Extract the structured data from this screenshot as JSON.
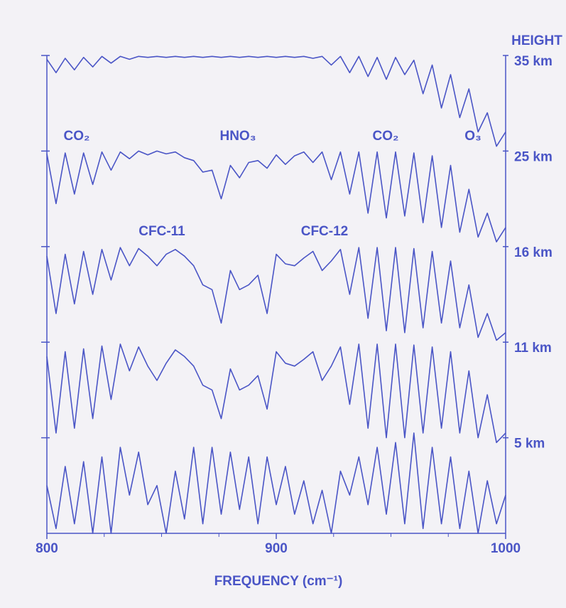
{
  "chart_data": {
    "type": "line",
    "xlabel": "FREQUENCY (cm⁻¹)",
    "ylabel": "HEIGHT",
    "color": "#4a55c6",
    "xlim": [
      800,
      1000
    ],
    "xticks": [
      800,
      900,
      1000
    ],
    "xminorticks": [
      825,
      850,
      875,
      925,
      950,
      975
    ],
    "ylim": [
      -1,
      4
    ],
    "yticks": [
      {
        "value": 4,
        "label": "35 km"
      },
      {
        "value": 3,
        "label": "25 km"
      },
      {
        "value": 2,
        "label": "16 km"
      },
      {
        "value": 1,
        "label": "11 km"
      },
      {
        "value": 0,
        "label": "5 km"
      }
    ],
    "annotations": [
      "CO₂",
      "HNO₃",
      "CO₂",
      "O₃",
      "CFC-11",
      "CFC-12"
    ],
    "x": [
      800,
      804,
      808,
      812,
      816,
      820,
      824,
      828,
      832,
      836,
      840,
      844,
      848,
      852,
      856,
      860,
      864,
      868,
      872,
      876,
      880,
      884,
      888,
      892,
      896,
      900,
      904,
      908,
      912,
      916,
      920,
      924,
      928,
      932,
      936,
      940,
      944,
      948,
      952,
      956,
      960,
      964,
      968,
      972,
      976,
      980,
      984,
      988,
      992,
      996,
      1000
    ],
    "series": [
      {
        "name": "35 km",
        "values": [
          3.96,
          3.82,
          3.97,
          3.85,
          3.98,
          3.88,
          3.99,
          3.92,
          3.99,
          3.96,
          3.99,
          3.98,
          3.99,
          3.98,
          3.99,
          3.98,
          3.99,
          3.98,
          3.99,
          3.98,
          3.99,
          3.98,
          3.99,
          3.98,
          3.99,
          3.98,
          3.99,
          3.98,
          3.99,
          3.97,
          3.99,
          3.9,
          3.99,
          3.82,
          3.99,
          3.78,
          3.98,
          3.75,
          3.98,
          3.8,
          3.95,
          3.6,
          3.9,
          3.45,
          3.8,
          3.35,
          3.65,
          3.2,
          3.4,
          3.05,
          3.2
        ]
      },
      {
        "name": "25 km",
        "values": [
          2.97,
          2.45,
          2.98,
          2.55,
          2.98,
          2.65,
          2.99,
          2.8,
          2.99,
          2.92,
          3.0,
          2.96,
          3.0,
          2.97,
          2.99,
          2.93,
          2.9,
          2.78,
          2.8,
          2.5,
          2.85,
          2.72,
          2.88,
          2.9,
          2.82,
          2.96,
          2.86,
          2.95,
          2.99,
          2.88,
          2.99,
          2.7,
          2.99,
          2.55,
          2.99,
          2.35,
          2.99,
          2.3,
          2.99,
          2.32,
          2.98,
          2.25,
          2.95,
          2.2,
          2.85,
          2.15,
          2.6,
          2.1,
          2.35,
          2.05,
          2.2
        ]
      },
      {
        "name": "16 km",
        "values": [
          1.9,
          1.3,
          1.92,
          1.4,
          1.95,
          1.5,
          1.97,
          1.65,
          1.99,
          1.8,
          1.98,
          1.9,
          1.8,
          1.92,
          1.97,
          1.9,
          1.8,
          1.6,
          1.55,
          1.2,
          1.75,
          1.55,
          1.6,
          1.7,
          1.3,
          1.92,
          1.82,
          1.8,
          1.88,
          1.95,
          1.75,
          1.85,
          1.97,
          1.5,
          1.99,
          1.25,
          1.99,
          1.12,
          1.99,
          1.1,
          1.98,
          1.15,
          1.95,
          1.2,
          1.85,
          1.15,
          1.6,
          1.05,
          1.3,
          1.02,
          1.1
        ]
      },
      {
        "name": "11 km",
        "values": [
          0.85,
          0.05,
          0.9,
          0.1,
          0.93,
          0.2,
          0.96,
          0.4,
          0.98,
          0.7,
          0.95,
          0.75,
          0.6,
          0.78,
          0.92,
          0.85,
          0.75,
          0.55,
          0.5,
          0.2,
          0.72,
          0.5,
          0.55,
          0.65,
          0.3,
          0.9,
          0.78,
          0.75,
          0.82,
          0.9,
          0.6,
          0.75,
          0.95,
          0.35,
          0.98,
          0.1,
          0.98,
          0.0,
          0.98,
          0.0,
          0.97,
          0.05,
          0.95,
          0.1,
          0.9,
          0.05,
          0.7,
          0.0,
          0.45,
          -0.05,
          0.05
        ]
      },
      {
        "name": "5 km",
        "values": [
          -0.5,
          -0.95,
          -0.3,
          -0.9,
          -0.25,
          -1.0,
          -0.2,
          -1.0,
          -0.1,
          -0.6,
          -0.15,
          -0.7,
          -0.5,
          -1.0,
          -0.35,
          -0.85,
          -0.1,
          -0.9,
          -0.1,
          -0.8,
          -0.15,
          -0.75,
          -0.2,
          -0.9,
          -0.2,
          -0.7,
          -0.3,
          -0.8,
          -0.45,
          -0.9,
          -0.55,
          -1.0,
          -0.35,
          -0.6,
          -0.2,
          -0.7,
          -0.1,
          -0.8,
          -0.05,
          -0.9,
          0.05,
          -0.95,
          -0.1,
          -0.9,
          -0.2,
          -0.95,
          -0.35,
          -1.0,
          -0.45,
          -0.9,
          -0.6
        ]
      }
    ]
  }
}
